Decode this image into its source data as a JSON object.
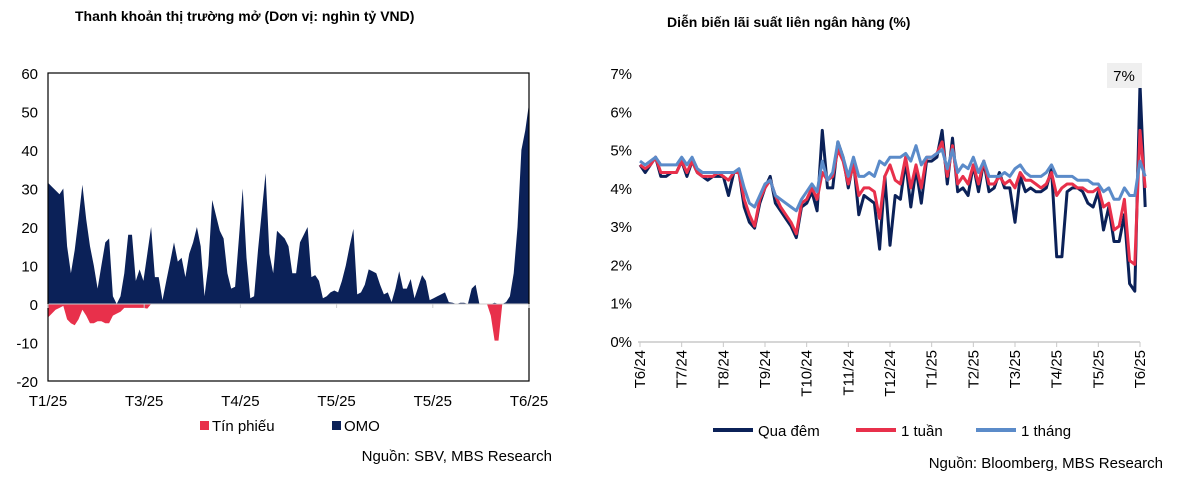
{
  "chart_data": [
    {
      "type": "area",
      "title": "Thanh khoản thị trường mở (Dơn vị: nghìn tỷ VND)",
      "source": "Nguồn: SBV, MBS Research",
      "ylim": [
        -20,
        60
      ],
      "yticks": [
        "60",
        "50",
        "40",
        "30",
        "20",
        "10",
        "0",
        "-10",
        "-20"
      ],
      "ytick_values": [
        60,
        50,
        40,
        30,
        20,
        10,
        0,
        -10,
        -20
      ],
      "xticks": [
        "T1/25",
        "T3/25",
        "T4/25",
        "T5/25",
        "T5/25",
        "T6/25"
      ],
      "grid": false,
      "legend": "bottom",
      "series": [
        {
          "name": "Tín phiếu",
          "color": "#E8304B",
          "values": [
            -3.5,
            -2.5,
            -1.5,
            -1,
            -0.5,
            -4,
            -5,
            -5.5,
            -4,
            -1.5,
            -3,
            -5,
            -5,
            -4.5,
            -4.5,
            -5,
            -5,
            -3,
            -2.5,
            -2,
            -1,
            -1,
            -1,
            -1,
            -1,
            -1,
            -1.2,
            0,
            0,
            0,
            0,
            0,
            0,
            0,
            0,
            0,
            0,
            0,
            0,
            0,
            0,
            0,
            0,
            0,
            0,
            0,
            0,
            0,
            0,
            0,
            0,
            0,
            0,
            0,
            0,
            0,
            0,
            0,
            0,
            0,
            0,
            0,
            0,
            0,
            0,
            0,
            0,
            0,
            0,
            0,
            0,
            0,
            0,
            0,
            0,
            0,
            0,
            0,
            0,
            0,
            0,
            0,
            0,
            0,
            0,
            0,
            0,
            0,
            0,
            0,
            0,
            0,
            0,
            0,
            0,
            0,
            0,
            0,
            0,
            0,
            0,
            0,
            0,
            0,
            0,
            0,
            0,
            0,
            0,
            0,
            0,
            0,
            0,
            0,
            0,
            0,
            -3,
            -9.5,
            -9.5,
            0,
            0,
            0,
            0
          ]
        },
        {
          "name": "OMO",
          "color": "#0B2158",
          "values": [
            31.5,
            30.5,
            29.5,
            28.5,
            30,
            15,
            8,
            14,
            22,
            31,
            22,
            15,
            10,
            4,
            10,
            16,
            17,
            2,
            0,
            2,
            8,
            18,
            18,
            6,
            9,
            6,
            13,
            20,
            7,
            7,
            1,
            6,
            11,
            16,
            11,
            12,
            7,
            13,
            16,
            20,
            15,
            2,
            10,
            27,
            23,
            19,
            17,
            8,
            4,
            4.5,
            17,
            30,
            12,
            1.5,
            2,
            14,
            24,
            34,
            13,
            8,
            19,
            18,
            17,
            15,
            8,
            8,
            16,
            18,
            20,
            7,
            7.5,
            6,
            1.5,
            2,
            3,
            3.5,
            3,
            6,
            10,
            15,
            19.5,
            2.5,
            3,
            5,
            9,
            8.5,
            8,
            5,
            2.5,
            3,
            0.5,
            4,
            8.5,
            4,
            4,
            6.5,
            1.5,
            4.5,
            7.5,
            6,
            1,
            1.5,
            2,
            2.5,
            3,
            0.5,
            0.3,
            0,
            0.3,
            0.3,
            0,
            4,
            5,
            0,
            0,
            0,
            0,
            0.3,
            0,
            0,
            0.5,
            2,
            8,
            20,
            40,
            45,
            52
          ]
        }
      ]
    },
    {
      "type": "line",
      "title": "Diễn biến lãi suất liên ngân hàng (%)",
      "source": "Nguồn: Bloomberg, MBS Research",
      "ylim": [
        0,
        7
      ],
      "yticks": [
        "7%",
        "6%",
        "5%",
        "4%",
        "3%",
        "2%",
        "1%",
        "0%"
      ],
      "ytick_values": [
        7,
        6,
        5,
        4,
        3,
        2,
        1,
        0
      ],
      "xticks": [
        "T6/24",
        "T7/24",
        "T8/24",
        "T9/24",
        "T10/24",
        "T11/24",
        "T12/24",
        "T1/25",
        "T2/25",
        "T3/25",
        "T4/25",
        "T5/25",
        "T6/25"
      ],
      "annotation": "7%",
      "grid": false,
      "legend": "bottom",
      "series": [
        {
          "name": "Qua đêm",
          "color": "#0B2158",
          "values": [
            4.6,
            4.4,
            4.6,
            4.8,
            4.3,
            4.3,
            4.4,
            4.4,
            4.7,
            4.3,
            4.7,
            4.4,
            4.3,
            4.2,
            4.3,
            4.3,
            4.3,
            3.8,
            4.4,
            4.4,
            3.5,
            3.1,
            2.95,
            3.6,
            4.0,
            4.3,
            3.6,
            3.4,
            3.2,
            3.0,
            2.7,
            3.5,
            3.6,
            3.9,
            3.4,
            5.5,
            4.0,
            4.0,
            5.2,
            4.8,
            4.0,
            4.7,
            3.3,
            3.8,
            3.7,
            3.6,
            2.4,
            4.3,
            2.5,
            3.8,
            3.7,
            4.7,
            3.5,
            4.5,
            3.6,
            4.7,
            4.7,
            4.8,
            5.5,
            4.1,
            5.3,
            3.9,
            4.0,
            3.8,
            4.6,
            3.9,
            4.7,
            3.9,
            4.0,
            4.4,
            4.0,
            4.0,
            3.1,
            4.3,
            3.9,
            4.0,
            3.9,
            3.9,
            4.0,
            4.5,
            2.2,
            2.2,
            3.9,
            4.0,
            4.0,
            3.9,
            3.6,
            3.5,
            3.9,
            2.9,
            3.5,
            2.6,
            2.6,
            3.3,
            1.5,
            1.3,
            6.7,
            3.5
          ]
        },
        {
          "name": "1 tuần",
          "color": "#E8304B",
          "values": [
            4.6,
            4.5,
            4.6,
            4.8,
            4.4,
            4.4,
            4.4,
            4.4,
            4.7,
            4.4,
            4.7,
            4.4,
            4.3,
            4.3,
            4.3,
            4.4,
            4.3,
            4.2,
            4.4,
            4.4,
            3.7,
            3.3,
            3.0,
            3.7,
            4.0,
            4.2,
            3.8,
            3.5,
            3.3,
            3.1,
            2.8,
            3.6,
            3.7,
            4.0,
            3.7,
            4.4,
            4.2,
            4.3,
            5.0,
            4.7,
            4.1,
            4.6,
            3.8,
            4.0,
            4.0,
            3.9,
            3.2,
            4.3,
            4.6,
            4.2,
            4.1,
            4.8,
            4.0,
            4.6,
            4.0,
            4.8,
            4.8,
            4.9,
            5.2,
            4.3,
            5.1,
            4.1,
            4.3,
            4.1,
            4.6,
            4.1,
            4.7,
            4.1,
            4.1,
            4.3,
            4.1,
            4.2,
            4.0,
            4.4,
            4.2,
            4.2,
            4.1,
            4.0,
            4.1,
            4.4,
            3.8,
            4.0,
            4.1,
            4.1,
            4.0,
            4.0,
            3.9,
            3.9,
            4.0,
            3.5,
            3.6,
            2.9,
            3.0,
            3.7,
            2.1,
            2.0,
            5.5,
            4.0
          ]
        },
        {
          "name": "1 tháng",
          "color": "#5B8BC9",
          "values": [
            4.7,
            4.6,
            4.7,
            4.8,
            4.6,
            4.6,
            4.6,
            4.6,
            4.8,
            4.6,
            4.8,
            4.5,
            4.4,
            4.4,
            4.4,
            4.4,
            4.4,
            4.4,
            4.4,
            4.5,
            4.0,
            3.6,
            3.5,
            3.8,
            4.1,
            4.2,
            3.8,
            3.7,
            3.6,
            3.5,
            3.4,
            3.7,
            3.9,
            4.1,
            3.9,
            4.7,
            4.2,
            4.4,
            5.2,
            4.8,
            4.3,
            4.8,
            4.3,
            4.3,
            4.4,
            4.3,
            4.7,
            4.6,
            4.8,
            4.8,
            4.8,
            4.9,
            4.7,
            5.1,
            4.6,
            4.8,
            4.8,
            4.9,
            5.0,
            4.5,
            5.0,
            4.4,
            4.6,
            4.5,
            4.8,
            4.4,
            4.7,
            4.3,
            4.3,
            4.3,
            4.4,
            4.3,
            4.5,
            4.6,
            4.4,
            4.3,
            4.3,
            4.3,
            4.4,
            4.6,
            4.3,
            4.3,
            4.3,
            4.3,
            4.2,
            4.2,
            4.2,
            4.1,
            4.1,
            3.9,
            4.0,
            3.7,
            3.7,
            4.0,
            3.8,
            3.8,
            4.7,
            4.3
          ]
        }
      ]
    }
  ]
}
